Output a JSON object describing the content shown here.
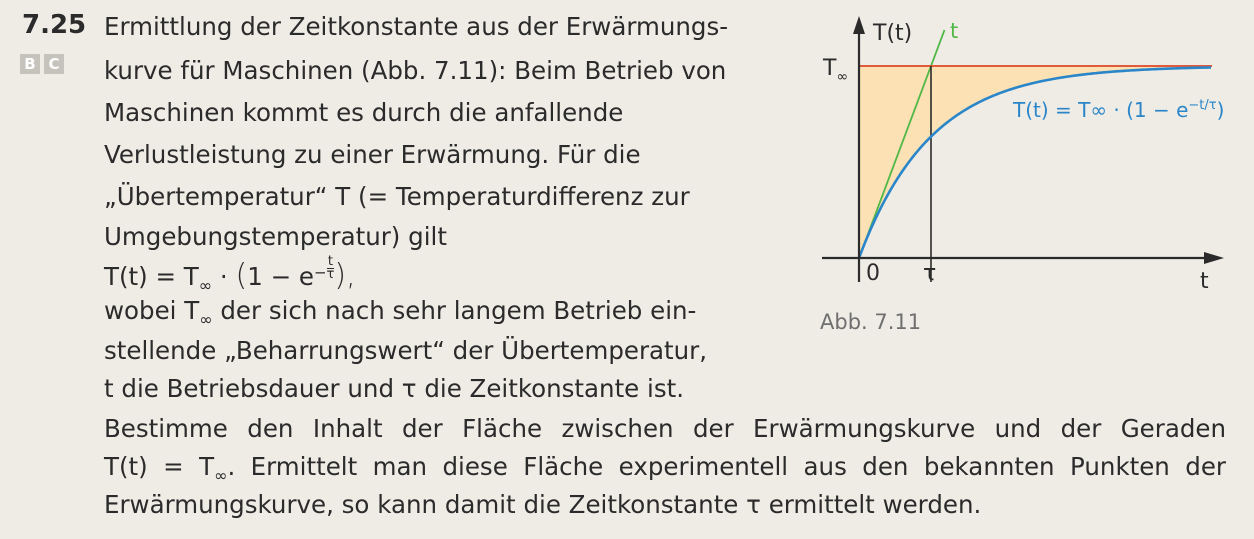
{
  "task": {
    "number": "7.25",
    "badges": [
      "B",
      "C"
    ],
    "lines": [
      "Ermittlung der Zeitkonstante aus der Erwärmungs-",
      "kurve für Maschinen (Abb. 7.11): Beim Betrieb von",
      "Maschinen kommt es durch die anfallende",
      "Verlustleistung zu einer Erwärmung. Für die",
      "„Übertemperatur“ T (= Temperaturdifferenz zur",
      "Umgebungstemperatur) gilt"
    ],
    "formula": {
      "lhs": "T(t) = T",
      "sub": "∞",
      "mid": " · ",
      "open": "(",
      "body": "1 − e",
      "exp_sign": "−",
      "frac_num": "t",
      "frac_den": "τ",
      "close": "),"
    },
    "lines2": {
      "l1_pre": "wobei T",
      "l1_sub": "∞",
      "l1_post": " der sich nach sehr langem Betrieb ein-",
      "l2": "stellende „Beharrungswert“ der Übertemperatur,",
      "l3": "t die Betriebsdauer und τ die Zeitkonstante ist."
    },
    "wide": {
      "w1": "Bestimme den Inhalt der Fläche zwischen der Erwärmungskurve und der Geraden",
      "w2_pre": "T(t) = T",
      "w2_sub": "∞",
      "w2_post": ". Ermittelt man diese Fläche experimentell aus den bekannten Punkten der",
      "w3": "Erwärmungskurve, so kann damit die Zeitkonstante τ ermittelt werden."
    }
  },
  "figure": {
    "caption": "Abb. 7.11",
    "y_axis_label": "T(t)",
    "x_axis_label": "t",
    "tangent_label": "t",
    "t_inf_label": "T",
    "t_inf_sub": "∞",
    "origin_label": "0",
    "tau_label": "τ",
    "curve_label": "T(t) = T∞ · (1 − e",
    "curve_exp": "−t/τ",
    "curve_close": ")",
    "colors": {
      "curve": "#2a86c9",
      "asymptote": "#e05a3c",
      "tangent": "#52b848",
      "fill": "#fbe1b3",
      "axis": "#2b2b2b"
    },
    "function": "T(t) = T∞ · (1 − e^(−t/τ))",
    "tau_in_t_range": 1,
    "t_range": [
      0,
      4.1
    ]
  }
}
